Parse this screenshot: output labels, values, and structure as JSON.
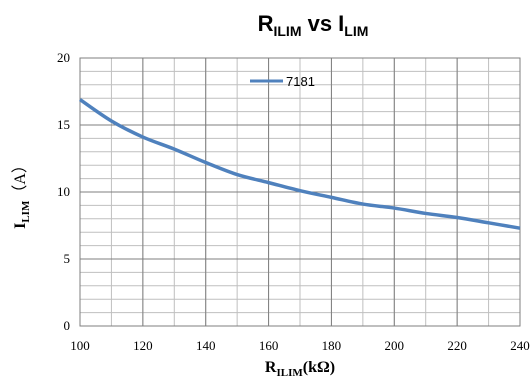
{
  "chart_data": {
    "type": "line",
    "title": {
      "main": "R",
      "sub1": "ILIM",
      "mid": " vs I",
      "sub2": "LIM"
    },
    "xlabel": {
      "main": "R",
      "sub": "ILIM",
      "rest": "(kΩ)"
    },
    "ylabel": {
      "main": "I",
      "sub": "LIM",
      "rest": "（A）"
    },
    "xlim": [
      100,
      240
    ],
    "ylim": [
      0,
      20
    ],
    "xticks": [
      100,
      120,
      140,
      160,
      180,
      200,
      220,
      240
    ],
    "yticks": [
      0,
      5,
      10,
      15,
      20
    ],
    "minor_grid_x_step": 10,
    "minor_grid_y_step": 1,
    "grid": true,
    "legend_position": "top-center",
    "series": [
      {
        "name": "7181",
        "color": "#4f81bd",
        "x": [
          100,
          110,
          120,
          130,
          140,
          150,
          160,
          170,
          180,
          190,
          200,
          210,
          220,
          230,
          240
        ],
        "y": [
          16.9,
          15.3,
          14.1,
          13.2,
          12.2,
          11.3,
          10.7,
          10.1,
          9.6,
          9.1,
          8.8,
          8.4,
          8.1,
          7.7,
          7.3
        ]
      }
    ]
  }
}
